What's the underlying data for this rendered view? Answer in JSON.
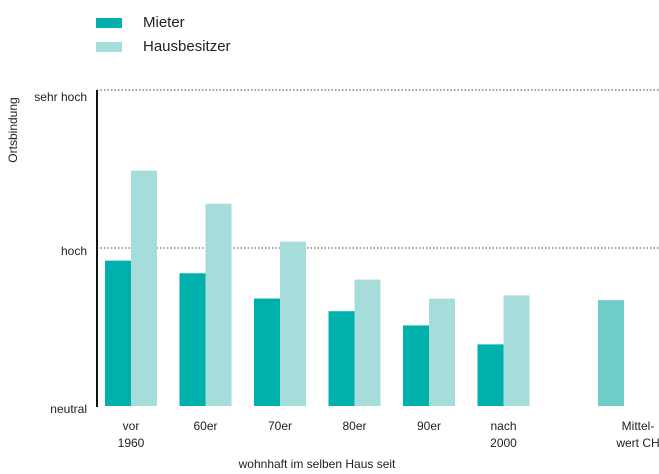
{
  "chart_data": {
    "type": "bar",
    "x_label": "wohnhaft im selben Haus seit",
    "y_label": "Ortsbindung",
    "categories": [
      "vor\n1960",
      "60er",
      "70er",
      "80er",
      "90er",
      "nach\n2000"
    ],
    "series": [
      {
        "name": "Mieter",
        "color": "#00b1ab",
        "values": [
          0.92,
          0.84,
          0.68,
          0.6,
          0.51,
          0.39
        ]
      },
      {
        "name": "Hausbesitzer",
        "color": "#a6ddda",
        "values": [
          1.49,
          1.28,
          1.04,
          0.8,
          0.68,
          0.7
        ]
      }
    ],
    "average": {
      "label": "Mittel-\nwert CH",
      "value": 0.67,
      "color": "#6ecdc9"
    },
    "ylim": [
      0,
      2
    ],
    "yticks": [
      {
        "value": 0,
        "label": "neutral"
      },
      {
        "value": 1,
        "label": "hoch"
      },
      {
        "value": 2,
        "label": "sehr hoch"
      }
    ],
    "grid": true
  }
}
